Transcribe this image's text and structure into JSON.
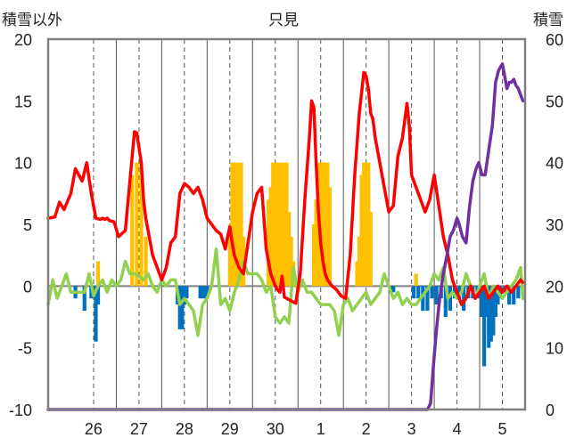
{
  "chart_data": {
    "type": "line",
    "title": "只見",
    "ylabel_left": "積雪以外",
    "ylabel_right": "積雪",
    "ylim_left": [
      -10,
      20
    ],
    "ylim_right": [
      0,
      60
    ],
    "yticks_left": [
      "20",
      "15",
      "10",
      "5",
      "0",
      "-5",
      "-10"
    ],
    "yticks_right": [
      "60",
      "50",
      "40",
      "30",
      "20",
      "10",
      "0"
    ],
    "xlim": [
      25.0,
      35.5
    ],
    "categories": [
      "26",
      "27",
      "28",
      "29",
      "30",
      "1",
      "2",
      "3",
      "4",
      "5"
    ],
    "grid": true,
    "colors": {
      "temperature": "#ff0000",
      "wind": "#92d050",
      "snow_depth": "#7030a0",
      "precip_positive": "#ffc000",
      "precip_negative": "#0070c0",
      "frame": "#808080",
      "grid": "#555555"
    },
    "series": [
      {
        "axis": "left",
        "color": "#ff0000",
        "x": [
          25.0,
          25.15,
          25.25,
          25.35,
          25.5,
          25.6,
          25.75,
          25.85,
          25.95,
          26.05,
          26.15,
          26.2,
          26.25,
          26.3,
          26.35,
          26.45,
          26.55,
          26.7,
          26.8,
          26.9,
          26.95,
          27.05,
          27.1,
          27.15,
          27.2,
          27.25,
          27.3,
          27.4,
          27.5,
          27.6,
          27.7,
          27.8,
          27.9,
          28.0,
          28.1,
          28.2,
          28.3,
          28.4,
          28.5,
          28.6,
          28.7,
          28.8,
          28.9,
          28.95,
          29.0,
          29.05,
          29.1,
          29.2,
          29.3,
          29.4,
          29.5,
          29.6,
          29.7,
          29.8,
          29.9,
          30.0,
          30.05,
          30.1,
          30.15,
          30.2,
          30.25,
          30.35,
          30.45,
          30.55,
          30.65,
          30.75,
          30.8,
          30.85,
          30.9,
          30.95,
          31.0,
          31.05,
          31.1,
          31.15,
          31.25,
          31.35,
          31.45,
          31.55,
          31.65,
          31.75,
          31.85,
          31.95,
          32.0,
          32.05,
          32.1,
          32.15,
          32.2,
          32.3,
          32.4,
          32.5,
          32.6,
          32.7,
          32.8,
          32.9,
          32.95,
          33.0,
          33.1,
          33.2,
          33.3,
          33.4,
          33.5,
          33.6,
          33.7,
          33.8,
          33.9,
          34.0,
          34.1,
          34.2,
          34.3,
          34.4,
          34.5,
          34.6,
          34.7,
          34.8,
          34.9,
          35.0,
          35.1,
          35.2,
          35.3,
          35.4,
          35.45
        ],
        "values": [
          5.5,
          5.6,
          6.8,
          6.2,
          7.5,
          9.5,
          8.5,
          10.0,
          7.5,
          5.5,
          5.4,
          5.5,
          5.4,
          5.5,
          5.3,
          5.2,
          4.0,
          4.5,
          8.5,
          12.5,
          12.4,
          10.0,
          7.0,
          5.5,
          4.5,
          3.5,
          2.5,
          1.5,
          0.5,
          1.5,
          3.5,
          4.0,
          7.5,
          8.3,
          8.0,
          7.5,
          8.0,
          7.0,
          5.5,
          5.0,
          4.5,
          4.2,
          3.0,
          4.0,
          4.8,
          3.5,
          2.5,
          1.5,
          1.0,
          3.5,
          6.0,
          7.5,
          8.0,
          3.0,
          1.0,
          0.0,
          -0.3,
          -0.5,
          0.8,
          -0.9,
          -1.0,
          -1.2,
          -1.4,
          1.0,
          7.0,
          12.0,
          15.0,
          14.5,
          10.0,
          6.0,
          3.5,
          2.0,
          1.0,
          0.5,
          0.0,
          -0.3,
          -0.8,
          -1.0,
          2.5,
          9.0,
          14.0,
          17.3,
          17.0,
          16.0,
          14.0,
          13.5,
          12.0,
          10.0,
          8.0,
          6.0,
          6.5,
          10.5,
          12.0,
          14.8,
          13.0,
          9.0,
          8.0,
          7.0,
          6.0,
          7.0,
          9.0,
          6.5,
          4.0,
          2.5,
          0.5,
          -0.5,
          -1.5,
          -1.0,
          0.0,
          -1.0,
          -0.5,
          0.0,
          -1.0,
          -0.5,
          0.0,
          -0.5,
          0.0,
          -0.5,
          0.0,
          0.5,
          0.3
        ]
      },
      {
        "axis": "left",
        "color": "#92d050",
        "x": [
          25.0,
          25.1,
          25.2,
          25.3,
          25.4,
          25.5,
          25.6,
          25.7,
          25.8,
          25.9,
          26.0,
          26.1,
          26.2,
          26.3,
          26.4,
          26.5,
          26.6,
          26.7,
          26.8,
          26.9,
          27.0,
          27.1,
          27.2,
          27.3,
          27.4,
          27.5,
          27.6,
          27.7,
          27.8,
          27.9,
          28.0,
          28.1,
          28.2,
          28.3,
          28.4,
          28.5,
          28.6,
          28.7,
          28.8,
          28.9,
          29.0,
          29.1,
          29.2,
          29.3,
          29.4,
          29.5,
          29.6,
          29.7,
          29.8,
          29.9,
          30.0,
          30.1,
          30.2,
          30.3,
          30.4,
          30.5,
          30.6,
          30.7,
          30.8,
          30.9,
          31.0,
          31.1,
          31.2,
          31.3,
          31.4,
          31.5,
          31.6,
          31.7,
          31.8,
          31.9,
          32.0,
          32.1,
          32.2,
          32.3,
          32.4,
          32.5,
          32.6,
          32.7,
          32.8,
          32.9,
          33.0,
          33.1,
          33.2,
          33.3,
          33.4,
          33.5,
          33.6,
          33.7,
          33.8,
          33.9,
          34.0,
          34.1,
          34.2,
          34.3,
          34.4,
          34.5,
          34.6,
          34.7,
          34.8,
          34.9,
          35.0,
          35.1,
          35.2,
          35.3,
          35.4,
          35.45
        ],
        "values": [
          -1.5,
          0.5,
          -1.0,
          0.0,
          1.0,
          -0.5,
          -0.5,
          -0.5,
          -0.5,
          1.0,
          -0.8,
          0.0,
          0.5,
          -0.5,
          0.5,
          0.0,
          0.5,
          2.0,
          1.0,
          1.0,
          0.8,
          0.5,
          1.0,
          0.0,
          -0.5,
          0.5,
          0.0,
          0.5,
          0.5,
          -1.5,
          -1.0,
          -1.5,
          -2.0,
          -4.0,
          -1.5,
          -1.0,
          0.0,
          3.0,
          -1.5,
          -1.0,
          -2.0,
          -0.5,
          0.5,
          2.0,
          1.0,
          1.0,
          1.0,
          0.5,
          -0.5,
          0.0,
          -2.5,
          -3.0,
          -2.5,
          -3.0,
          1.5,
          -0.5,
          0.5,
          -0.5,
          -0.5,
          -1.0,
          -1.5,
          -1.5,
          -1.5,
          -2.0,
          -4.0,
          -1.5,
          -1.0,
          -2.0,
          -1.5,
          -1.0,
          -0.5,
          -1.5,
          -1.0,
          -0.5,
          1.0,
          0.0,
          -1.0,
          -0.5,
          -1.5,
          -1.0,
          -1.5,
          -1.5,
          -1.0,
          -0.5,
          0.0,
          1.0,
          0.5,
          1.5,
          -1.0,
          -0.5,
          -1.0,
          -0.5,
          1.0,
          0.0,
          -1.0,
          0.0,
          1.0,
          -1.0,
          0.0,
          -0.5,
          -1.0,
          -0.5,
          0.0,
          0.5,
          1.5,
          -1.0
        ]
      },
      {
        "axis": "right",
        "color": "#7030a0",
        "x": [
          25.0,
          33.35,
          33.42,
          33.48,
          33.55,
          33.62,
          33.7,
          33.78,
          33.85,
          33.92,
          34.0,
          34.05,
          34.12,
          34.2,
          34.28,
          34.35,
          34.42,
          34.48,
          34.55,
          34.62,
          34.7,
          34.78,
          34.85,
          34.92,
          35.0,
          35.05,
          35.1,
          35.15,
          35.2,
          35.25,
          35.3,
          35.35,
          35.4,
          35.45
        ],
        "values": [
          0,
          0,
          1,
          7,
          13,
          18,
          22,
          25,
          28,
          29,
          31,
          30,
          28,
          27,
          33,
          37,
          39,
          40,
          38,
          38,
          42,
          46,
          53,
          55,
          56,
          54,
          52,
          53,
          53,
          53.5,
          52.5,
          52,
          51,
          50
        ]
      },
      {
        "axis": "left",
        "type": "bar",
        "color": "#ffc000",
        "x": [
          26.1,
          26.85,
          26.95,
          27.05,
          27.15,
          29.0,
          29.05,
          29.1,
          29.15,
          29.2,
          29.25,
          29.3,
          29.85,
          29.9,
          29.95,
          30.0,
          30.05,
          30.1,
          30.15,
          30.2,
          30.25,
          30.3,
          30.35,
          30.4,
          30.85,
          30.9,
          30.95,
          31.0,
          31.05,
          31.1,
          31.15,
          31.2,
          31.8,
          31.85,
          31.9,
          31.95,
          32.0,
          32.05,
          32.1,
          33.1
        ],
        "values": [
          2.0,
          9.0,
          10.0,
          10.0,
          4.0,
          5.0,
          10.0,
          10.0,
          10.0,
          10.0,
          10.0,
          4.0,
          7.0,
          8.0,
          10.0,
          10.0,
          10.0,
          10.0,
          10.0,
          10.0,
          10.0,
          6.0,
          4.0,
          2.0,
          5.0,
          7.0,
          10.0,
          10.0,
          10.0,
          10.0,
          10.0,
          8.0,
          2.0,
          4.0,
          9.0,
          10.0,
          10.0,
          10.0,
          6.0,
          1.0
        ]
      },
      {
        "axis": "left",
        "type": "bar",
        "color": "#0070c0",
        "x": [
          25.6,
          25.8,
          25.95,
          26.0,
          26.05,
          26.1,
          27.85,
          27.9,
          27.95,
          28.0,
          28.05,
          28.35,
          28.4,
          28.45,
          28.5,
          32.55,
          32.6,
          33.05,
          33.15,
          33.25,
          33.35,
          33.45,
          33.55,
          33.65,
          33.75,
          33.85,
          33.95,
          34.05,
          34.15,
          34.25,
          34.35,
          34.45,
          34.55,
          34.6,
          34.65,
          34.7,
          34.75,
          34.8,
          34.85,
          34.9,
          34.95,
          35.05,
          35.15,
          35.25,
          35.35
        ],
        "values": [
          -1.0,
          -2.0,
          -1.0,
          -0.5,
          -4.5,
          -1.5,
          -1.5,
          -3.5,
          -3.5,
          -1.5,
          -1.0,
          -1.0,
          -1.0,
          -1.0,
          -1.0,
          -0.5,
          -0.5,
          -1.0,
          -1.0,
          -2.0,
          -2.0,
          -1.0,
          -1.5,
          -1.0,
          -2.5,
          -2.0,
          -1.0,
          -1.0,
          -2.0,
          -1.0,
          -1.0,
          -1.0,
          -2.5,
          -6.5,
          -2.5,
          -5.0,
          -4.5,
          -4.0,
          -2.5,
          -1.5,
          -1.0,
          -0.5,
          -1.5,
          -1.5,
          -1.0
        ]
      }
    ]
  }
}
